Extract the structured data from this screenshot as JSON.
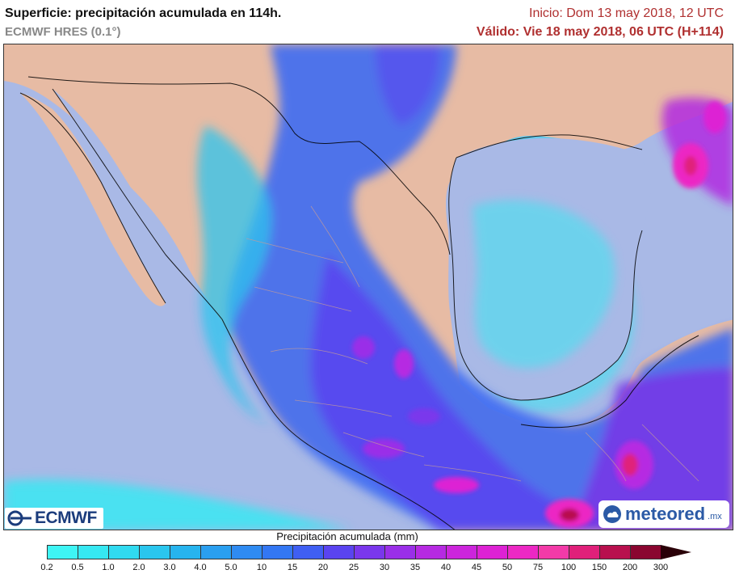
{
  "header": {
    "title": "Superficie: precipitación acumulada en 114h.",
    "model": "ECMWF HRES (0.1°)",
    "init": "Inicio: Dom 13 may 2018, 12 UTC",
    "valid": "Válido: Vie 18 may 2018, 06 UTC (H+114)"
  },
  "logos": {
    "left": "ECMWF",
    "right": "meteored",
    "right_tld": ".mx"
  },
  "legend": {
    "title": "Precipitación acumulada (mm)",
    "ticks": [
      "0.2",
      "0.5",
      "1.0",
      "2.0",
      "3.0",
      "4.0",
      "5.0",
      "10",
      "15",
      "20",
      "25",
      "30",
      "35",
      "40",
      "45",
      "50",
      "75",
      "100",
      "150",
      "200",
      "300"
    ],
    "colors": [
      "#3ef5f5",
      "#36e8f2",
      "#30daf0",
      "#2ac6ee",
      "#27b4ee",
      "#2a9ff0",
      "#2f8bf2",
      "#3377f3",
      "#3f5ff3",
      "#5a44f0",
      "#7a37ec",
      "#9a2fe8",
      "#b62ae2",
      "#cc25dc",
      "#dd22d4",
      "#ec28c4",
      "#f33aa8",
      "#e0207a",
      "#b8104e",
      "#8a0630"
    ],
    "overflow_color": "#2a0008"
  },
  "map_colors": {
    "ocean": "#a9b9e6",
    "land_dry": "#e7bba4",
    "border": "#000000",
    "state": "#c39a9a"
  }
}
